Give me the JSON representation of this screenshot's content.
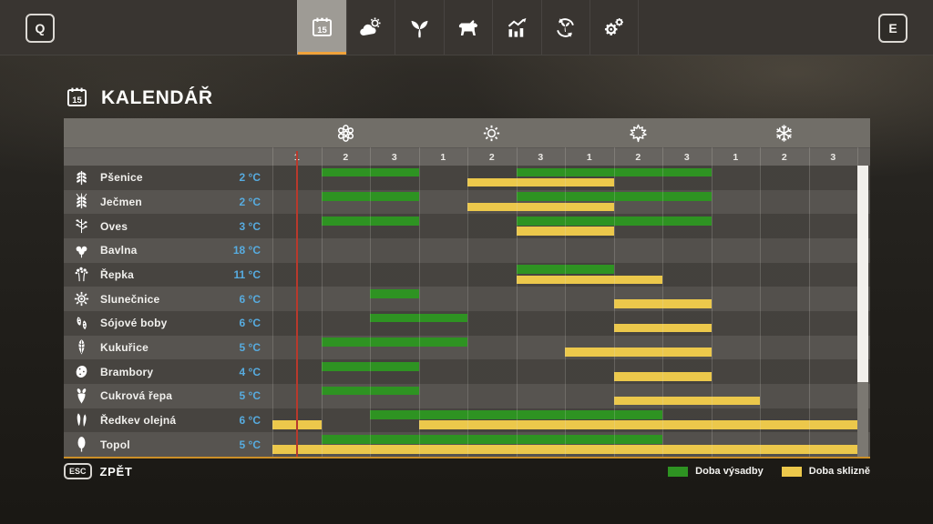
{
  "topbar": {
    "left_key": "Q",
    "right_key": "E",
    "tabs": [
      {
        "id": "calendar",
        "icon": "calendar",
        "selected": true
      },
      {
        "id": "weather",
        "icon": "weather",
        "selected": false
      },
      {
        "id": "crops",
        "icon": "sprout",
        "selected": false
      },
      {
        "id": "animals",
        "icon": "cow",
        "selected": false
      },
      {
        "id": "statistics",
        "icon": "stats",
        "selected": false
      },
      {
        "id": "production",
        "icon": "cycle",
        "selected": false
      },
      {
        "id": "settings",
        "icon": "gears",
        "selected": false
      }
    ]
  },
  "header": {
    "title": "KALENDÁŘ"
  },
  "footer": {
    "esc_key": "ESC",
    "back_label": "ZPĚT"
  },
  "chart_data": {
    "type": "gantt-calendar",
    "title": "KALENDÁŘ",
    "seasons": [
      {
        "id": "spring",
        "icon": "flower"
      },
      {
        "id": "summer",
        "icon": "sun"
      },
      {
        "id": "autumn",
        "icon": "maple-leaf"
      },
      {
        "id": "winter",
        "icon": "snowflake"
      }
    ],
    "month_labels": [
      "1",
      "2",
      "3",
      "1",
      "2",
      "3",
      "1",
      "2",
      "3",
      "1",
      "2",
      "3"
    ],
    "months_total": 12,
    "current_time_month_offset": 0.5,
    "colors": {
      "plant": "#2e9322",
      "harvest": "#ecc84b",
      "current_time_line": "#b8392c",
      "temperature_text": "#57ace0",
      "accent_orange": "#f0a23a"
    },
    "legend": [
      {
        "id": "plant",
        "label": "Doba výsadby",
        "color": "#2e9322"
      },
      {
        "id": "harvest",
        "label": "Doba sklizně",
        "color": "#ecc84b"
      }
    ],
    "rows": [
      {
        "crop": "Pšenice",
        "temp": "2 °C",
        "icon": "wheat",
        "plant": [
          [
            2,
            3
          ],
          [
            6,
            9
          ]
        ],
        "harvest": [
          [
            5,
            7
          ]
        ]
      },
      {
        "crop": "Ječmen",
        "temp": "2 °C",
        "icon": "barley",
        "plant": [
          [
            2,
            3
          ],
          [
            6,
            9
          ]
        ],
        "harvest": [
          [
            5,
            7
          ]
        ]
      },
      {
        "crop": "Oves",
        "temp": "3 °C",
        "icon": "oat",
        "plant": [
          [
            2,
            3
          ],
          [
            6,
            9
          ]
        ],
        "harvest": [
          [
            6,
            7
          ]
        ]
      },
      {
        "crop": "Bavlna",
        "temp": "18 °C",
        "icon": "cotton",
        "plant": [],
        "harvest": []
      },
      {
        "crop": "Řepka",
        "temp": "11 °C",
        "icon": "rapeseed",
        "plant": [
          [
            6,
            7
          ]
        ],
        "harvest": [
          [
            6,
            8
          ]
        ]
      },
      {
        "crop": "Slunečnice",
        "temp": "6 °C",
        "icon": "sunflower",
        "plant": [
          [
            3,
            3
          ]
        ],
        "harvest": [
          [
            8,
            9
          ]
        ]
      },
      {
        "crop": "Sójové boby",
        "temp": "6 °C",
        "icon": "soybean",
        "plant": [
          [
            3,
            4
          ]
        ],
        "harvest": [
          [
            8,
            9
          ]
        ]
      },
      {
        "crop": "Kukuřice",
        "temp": "5 °C",
        "icon": "corn",
        "plant": [
          [
            2,
            4
          ]
        ],
        "harvest": [
          [
            7,
            9
          ]
        ]
      },
      {
        "crop": "Brambory",
        "temp": "4 °C",
        "icon": "potato",
        "plant": [
          [
            2,
            3
          ]
        ],
        "harvest": [
          [
            8,
            9
          ]
        ]
      },
      {
        "crop": "Cukrová řepa",
        "temp": "5 °C",
        "icon": "sugar-beet",
        "plant": [
          [
            2,
            3
          ]
        ],
        "harvest": [
          [
            8,
            10
          ]
        ]
      },
      {
        "crop": "Ředkev olejná",
        "temp": "6 °C",
        "icon": "oilseed-radish",
        "plant": [
          [
            3,
            8
          ]
        ],
        "harvest": [
          [
            1,
            1
          ],
          [
            4,
            12
          ]
        ]
      },
      {
        "crop": "Topol",
        "temp": "5 °C",
        "icon": "poplar",
        "plant": [
          [
            2,
            8
          ]
        ],
        "harvest": [
          [
            1,
            12
          ]
        ]
      }
    ]
  }
}
